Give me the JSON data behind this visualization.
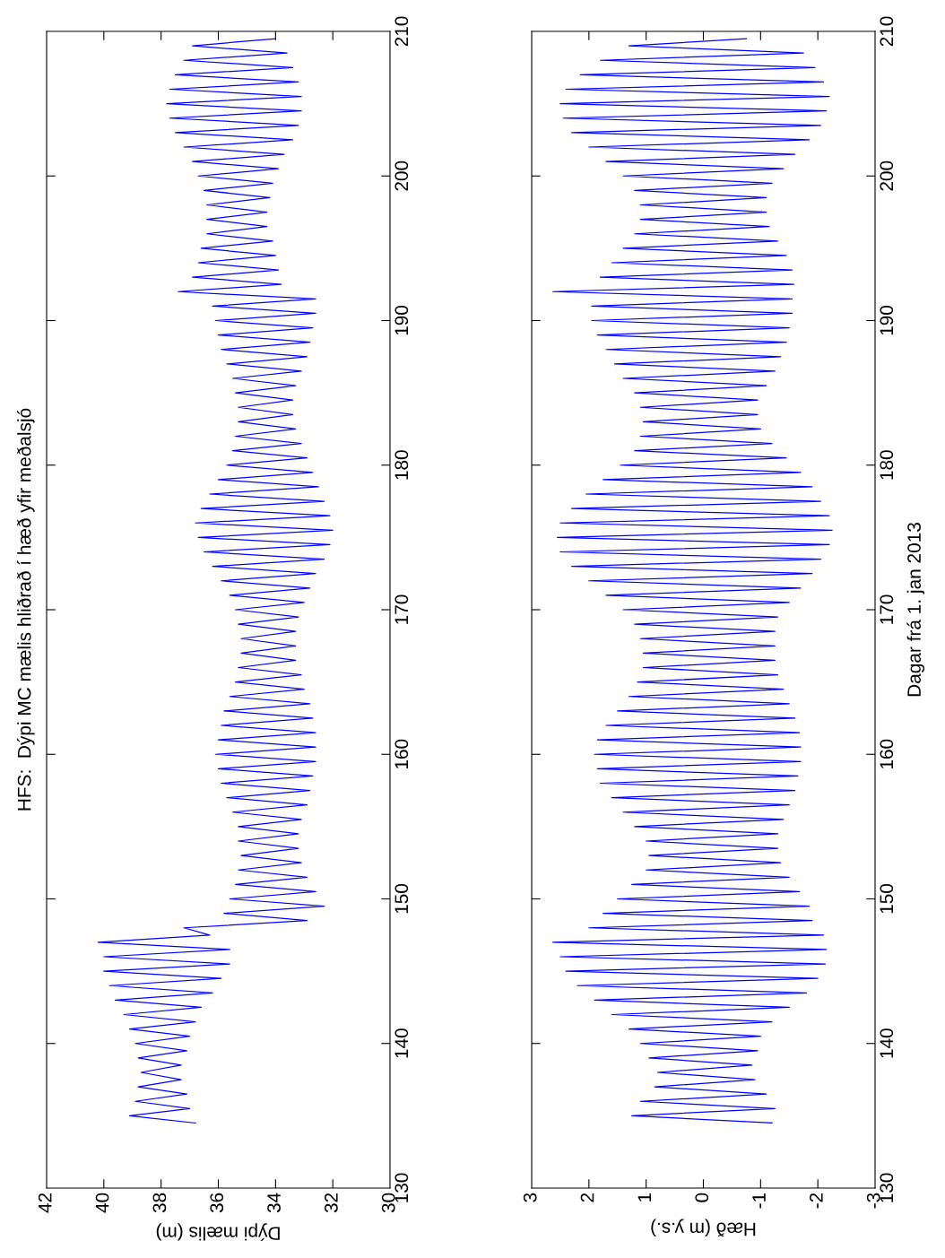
{
  "chart_data": [
    {
      "type": "line",
      "title": "HFS:  Dýpi MC mælis hliðrað í hæð yfir meðalsjó",
      "xlabel": "Dýpi mælis (m)",
      "xlim": [
        42,
        30
      ],
      "xticks": [
        42,
        40,
        38,
        36,
        34,
        32,
        30
      ],
      "ylim": [
        130,
        210
      ],
      "yticks": [
        130,
        140,
        150,
        160,
        170,
        180,
        190,
        200,
        210
      ],
      "grid": false,
      "legend": false,
      "series": [
        {
          "color": "#0000ff",
          "x": [
            36.8,
            39.1,
            37.0,
            38.9,
            37.1,
            38.8,
            37.3,
            38.7,
            37.3,
            38.8,
            37.1,
            38.9,
            37.0,
            39.1,
            36.8,
            39.3,
            36.6,
            39.6,
            36.2,
            39.8,
            35.9,
            40.0,
            35.6,
            40.0,
            35.6,
            40.2,
            36.3,
            37.2,
            32.9,
            35.8,
            32.3,
            35.6,
            32.6,
            35.4,
            32.9,
            35.3,
            33.1,
            35.2,
            33.2,
            35.3,
            33.2,
            35.3,
            33.1,
            35.5,
            32.9,
            35.7,
            32.8,
            35.9,
            32.7,
            36.0,
            32.6,
            36.1,
            32.6,
            36.0,
            32.6,
            35.9,
            32.7,
            35.8,
            32.8,
            35.6,
            33.0,
            35.4,
            33.1,
            35.3,
            33.3,
            35.2,
            33.3,
            35.2,
            33.3,
            35.3,
            33.2,
            35.4,
            33.0,
            35.6,
            32.8,
            35.9,
            32.6,
            36.2,
            32.3,
            36.5,
            32.1,
            36.7,
            32.0,
            36.8,
            32.1,
            36.6,
            32.3,
            36.3,
            32.5,
            36.0,
            32.7,
            35.7,
            32.9,
            35.5,
            33.1,
            35.4,
            33.3,
            35.3,
            33.4,
            35.3,
            33.4,
            35.4,
            33.3,
            35.5,
            33.1,
            35.7,
            32.9,
            35.9,
            32.8,
            36.0,
            32.7,
            36.1,
            32.6,
            36.2,
            32.6,
            37.4,
            33.8,
            36.9,
            33.9,
            36.7,
            34.0,
            36.6,
            34.1,
            36.4,
            34.3,
            36.4,
            34.3,
            36.4,
            34.2,
            36.5,
            34.1,
            36.7,
            33.9,
            36.9,
            33.7,
            37.2,
            33.4,
            37.5,
            33.2,
            37.7,
            33.1,
            37.8,
            33.1,
            37.7,
            33.2,
            37.5,
            33.4,
            37.2,
            33.6,
            36.9,
            34.0
          ],
          "values": [
            134.5,
            135,
            135.5,
            136,
            136.5,
            137,
            137.5,
            138,
            138.5,
            139,
            139.5,
            140,
            140.5,
            141,
            141.5,
            142,
            142.5,
            143,
            143.5,
            144,
            144.5,
            145,
            145.5,
            146,
            146.5,
            147,
            147.5,
            148,
            148.5,
            149,
            149.5,
            150,
            150.5,
            151,
            151.5,
            152,
            152.5,
            153,
            153.5,
            154,
            154.5,
            155,
            155.5,
            156,
            156.5,
            157,
            157.5,
            158,
            158.5,
            159,
            159.5,
            160,
            160.5,
            161,
            161.5,
            162,
            162.5,
            163,
            163.5,
            164,
            164.5,
            165,
            165.5,
            166,
            166.5,
            167,
            167.5,
            168,
            168.5,
            169,
            169.5,
            170,
            170.5,
            171,
            171.5,
            172,
            172.5,
            173,
            173.5,
            174,
            174.5,
            175,
            175.5,
            176,
            176.5,
            177,
            177.5,
            178,
            178.5,
            179,
            179.5,
            180,
            180.5,
            181,
            181.5,
            182,
            182.5,
            183,
            183.5,
            184,
            184.5,
            185,
            185.5,
            186,
            186.5,
            187,
            187.5,
            188,
            188.5,
            189,
            189.5,
            190,
            190.5,
            191,
            191.5,
            192,
            192.5,
            193,
            193.5,
            194,
            194.5,
            195,
            195.5,
            196,
            196.5,
            197,
            197.5,
            198,
            198.5,
            199,
            199.5,
            200,
            200.5,
            201,
            201.5,
            202,
            202.5,
            203,
            203.5,
            204,
            204.5,
            205,
            205.5,
            206,
            206.5,
            207,
            207.5,
            208,
            208.5,
            209,
            209.5
          ]
        }
      ]
    },
    {
      "type": "line",
      "ylabel": "Dagar frá 1. jan 2013",
      "xlabel": "Hæð (m y.s.)",
      "xlim": [
        3,
        -3
      ],
      "xticks": [
        3,
        2,
        1,
        0,
        -1,
        -2,
        -3
      ],
      "ylim": [
        130,
        210
      ],
      "yticks": [
        130,
        140,
        150,
        160,
        170,
        180,
        190,
        200,
        210
      ],
      "grid": false,
      "legend": false,
      "series": [
        {
          "color": "#0000ff",
          "x": [
            -1.2,
            1.25,
            -1.25,
            1.1,
            -1.1,
            0.85,
            -0.9,
            0.8,
            -0.85,
            0.95,
            -0.95,
            1.1,
            -1.0,
            1.3,
            -1.2,
            1.6,
            -1.5,
            1.9,
            -1.8,
            2.2,
            -2.0,
            2.4,
            -2.13,
            2.5,
            -2.15,
            2.63,
            -2.1,
            2.0,
            -1.9,
            1.75,
            -1.85,
            1.5,
            -1.68,
            1.25,
            -1.5,
            1.0,
            -1.35,
            0.95,
            -1.3,
            1.0,
            -1.3,
            1.2,
            -1.4,
            1.4,
            -1.5,
            1.6,
            -1.6,
            1.8,
            -1.65,
            1.85,
            -1.7,
            1.9,
            -1.7,
            1.85,
            -1.68,
            1.7,
            -1.6,
            1.5,
            -1.5,
            1.3,
            -1.4,
            1.15,
            -1.3,
            1.05,
            -1.25,
            1.05,
            -1.25,
            1.1,
            -1.25,
            1.2,
            -1.3,
            1.4,
            -1.5,
            1.7,
            -1.7,
            2.0,
            -1.9,
            2.3,
            -2.05,
            2.5,
            -2.2,
            2.55,
            -2.25,
            2.5,
            -2.2,
            2.3,
            -2.05,
            2.05,
            -1.9,
            1.75,
            -1.7,
            1.45,
            -1.45,
            1.2,
            -1.2,
            1.1,
            -1.0,
            1.05,
            -0.95,
            1.1,
            -0.95,
            1.2,
            -1.1,
            1.4,
            -1.25,
            1.55,
            -1.35,
            1.7,
            -1.45,
            1.85,
            -1.5,
            1.95,
            -1.55,
            1.95,
            -1.55,
            2.63,
            -1.58,
            1.8,
            -1.55,
            1.6,
            -1.45,
            1.4,
            -1.3,
            1.2,
            -1.15,
            1.1,
            -1.1,
            1.1,
            -1.1,
            1.2,
            -1.2,
            1.4,
            -1.4,
            1.7,
            -1.6,
            2.0,
            -1.85,
            2.3,
            -2.05,
            2.45,
            -2.15,
            2.5,
            -2.2,
            2.4,
            -2.1,
            2.15,
            -1.95,
            1.8,
            -1.75,
            1.3,
            -0.75
          ],
          "values": [
            134.5,
            135,
            135.5,
            136,
            136.5,
            137,
            137.5,
            138,
            138.5,
            139,
            139.5,
            140,
            140.5,
            141,
            141.5,
            142,
            142.5,
            143,
            143.5,
            144,
            144.5,
            145,
            145.5,
            146,
            146.5,
            147,
            147.5,
            148,
            148.5,
            149,
            149.5,
            150,
            150.5,
            151,
            151.5,
            152,
            152.5,
            153,
            153.5,
            154,
            154.5,
            155,
            155.5,
            156,
            156.5,
            157,
            157.5,
            158,
            158.5,
            159,
            159.5,
            160,
            160.5,
            161,
            161.5,
            162,
            162.5,
            163,
            163.5,
            164,
            164.5,
            165,
            165.5,
            166,
            166.5,
            167,
            167.5,
            168,
            168.5,
            169,
            169.5,
            170,
            170.5,
            171,
            171.5,
            172,
            172.5,
            173,
            173.5,
            174,
            174.5,
            175,
            175.5,
            176,
            176.5,
            177,
            177.5,
            178,
            178.5,
            179,
            179.5,
            180,
            180.5,
            181,
            181.5,
            182,
            182.5,
            183,
            183.5,
            184,
            184.5,
            185,
            185.5,
            186,
            186.5,
            187,
            187.5,
            188,
            188.5,
            189,
            189.5,
            190,
            190.5,
            191,
            191.5,
            192,
            192.5,
            193,
            193.5,
            194,
            194.5,
            195,
            195.5,
            196,
            196.5,
            197,
            197.5,
            198,
            198.5,
            199,
            199.5,
            200,
            200.5,
            201,
            201.5,
            202,
            202.5,
            203,
            203.5,
            204,
            204.5,
            205,
            205.5,
            206,
            206.5,
            207,
            207.5,
            208,
            208.5,
            209,
            209.5
          ]
        }
      ]
    }
  ]
}
